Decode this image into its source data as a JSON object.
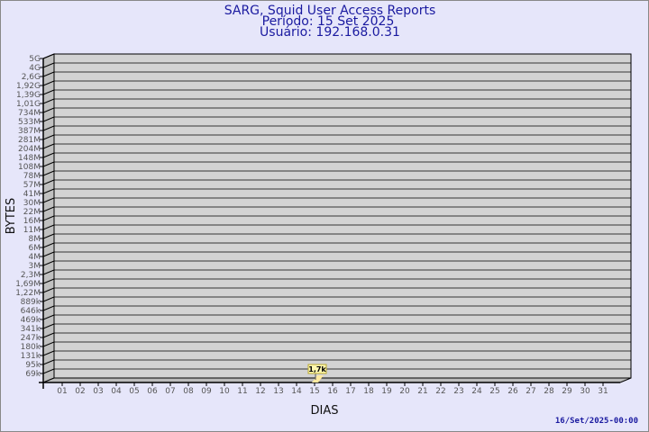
{
  "header": {
    "title": "SARG, Squid User Access Reports",
    "period": "Período: 15 Set 2025",
    "user": "Usuário: 192.168.0.31"
  },
  "footer": {
    "timestamp": "16/Set/2025-00:00"
  },
  "colors": {
    "background": "#e6e6fa",
    "plot_wall": "#d3d3d3",
    "side_wall": "#c0c0c0",
    "bar": "#fde9a0",
    "title": "#1a1aa0"
  },
  "chart_data": {
    "type": "bar",
    "xlabel": "DIAS",
    "ylabel": "BYTES",
    "categories": [
      "01",
      "02",
      "03",
      "04",
      "05",
      "06",
      "07",
      "08",
      "09",
      "10",
      "11",
      "12",
      "13",
      "14",
      "15",
      "16",
      "17",
      "18",
      "19",
      "20",
      "21",
      "22",
      "23",
      "24",
      "25",
      "26",
      "27",
      "28",
      "29",
      "30",
      "31"
    ],
    "y_scale": "log",
    "y_tick_labels": [
      "5G",
      "4G",
      "2,6G",
      "1,92G",
      "1,39G",
      "1,01G",
      "734M",
      "533M",
      "387M",
      "281M",
      "204M",
      "148M",
      "108M",
      "78M",
      "57M",
      "41M",
      "30M",
      "22M",
      "16M",
      "11M",
      "8M",
      "6M",
      "4M",
      "3M",
      "2,3M",
      "1,69M",
      "1,22M",
      "889k",
      "646k",
      "469k",
      "341k",
      "247k",
      "180k",
      "131k",
      "95k",
      "69k"
    ],
    "series": [
      {
        "values": [
          null,
          null,
          null,
          null,
          null,
          null,
          null,
          null,
          null,
          null,
          null,
          null,
          null,
          null,
          1700,
          null,
          null,
          null,
          null,
          null,
          null,
          null,
          null,
          null,
          null,
          null,
          null,
          null,
          null,
          null,
          null
        ],
        "data_labels": {
          "15": "1,7k"
        }
      }
    ],
    "grid": true
  }
}
